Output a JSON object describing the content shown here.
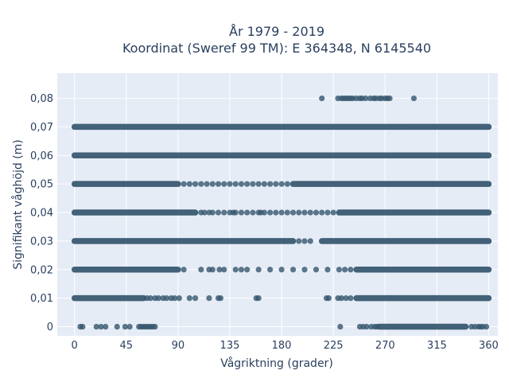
{
  "chart_data": {
    "type": "scatter",
    "title": "År 1979 - 2019",
    "subtitle": "Koordinat (Sweref 99 TM): E 364348, N 6145540",
    "xlabel": "Vågriktning (grader)",
    "ylabel": "Signifikant våghöjd (m)",
    "xlim": [
      -15,
      368
    ],
    "ylim": [
      -0.0032,
      0.0888
    ],
    "xticks": [
      0,
      45,
      90,
      135,
      180,
      225,
      270,
      315,
      360
    ],
    "xtick_labels": [
      "0",
      "45",
      "90",
      "135",
      "180",
      "225",
      "270",
      "315",
      "360"
    ],
    "yticks": [
      0,
      0.01,
      0.02,
      0.03,
      0.04,
      0.05,
      0.06,
      0.07,
      0.08
    ],
    "ytick_labels": [
      "0",
      "0,01",
      "0,02",
      "0,03",
      "0,04",
      "0,05",
      "0,06",
      "0,07",
      "0,08"
    ],
    "grid": true,
    "marker_color": "#35566e",
    "plot_bg": "#e5ecf6",
    "rows": [
      {
        "y": 0,
        "dense_segments": [
          [
            265,
            340
          ]
        ],
        "points": [
          5,
          7,
          19,
          23,
          27,
          37,
          44,
          48,
          56,
          58,
          60,
          62,
          64,
          66,
          68,
          70,
          231,
          248,
          251,
          254,
          258,
          261,
          263,
          345,
          348,
          351,
          353,
          355,
          358
        ]
      },
      {
        "y": 0.01,
        "dense_segments": [
          [
            0,
            60
          ],
          [
            245,
            360
          ]
        ],
        "points": [
          63,
          66,
          70,
          73,
          77,
          80,
          84,
          87,
          91,
          100,
          105,
          117,
          125,
          127,
          158,
          160,
          219,
          221,
          229,
          232,
          236,
          240
        ]
      },
      {
        "y": 0.02,
        "dense_segments": [
          [
            0,
            90
          ],
          [
            245,
            360
          ]
        ],
        "points": [
          95,
          110,
          117,
          120,
          126,
          130,
          140,
          145,
          150,
          160,
          170,
          180,
          190,
          200,
          210,
          220,
          230,
          235,
          240
        ]
      },
      {
        "y": 0.03,
        "dense_segments": [
          [
            0,
            190
          ],
          [
            215,
            360
          ]
        ],
        "points": [
          195,
          200,
          205
        ]
      },
      {
        "y": 0.04,
        "dense_segments": [
          [
            0,
            105
          ],
          [
            230,
            360
          ]
        ],
        "points": [
          110,
          113,
          117,
          120,
          125,
          130,
          135,
          138,
          140,
          145,
          150,
          155,
          160,
          162,
          165,
          170,
          175,
          180,
          185,
          190,
          195,
          200,
          205,
          210,
          215,
          220,
          225
        ]
      },
      {
        "y": 0.05,
        "dense_segments": [
          [
            0,
            90
          ],
          [
            190,
            360
          ]
        ],
        "points": [
          95,
          100,
          105,
          110,
          115,
          120,
          125,
          130,
          135,
          140,
          145,
          150,
          155,
          160,
          165,
          170,
          175,
          180,
          185
        ]
      },
      {
        "y": 0.06,
        "dense_segments": [
          [
            0,
            360
          ]
        ],
        "points": []
      },
      {
        "y": 0.07,
        "dense_segments": [
          [
            0,
            360
          ]
        ],
        "points": []
      },
      {
        "y": 0.08,
        "dense_segments": [],
        "points": [
          215,
          229,
          232,
          234,
          236,
          238,
          240,
          242,
          245,
          248,
          250,
          253,
          257,
          260,
          262,
          265,
          267,
          270,
          272,
          274,
          295
        ]
      }
    ]
  }
}
